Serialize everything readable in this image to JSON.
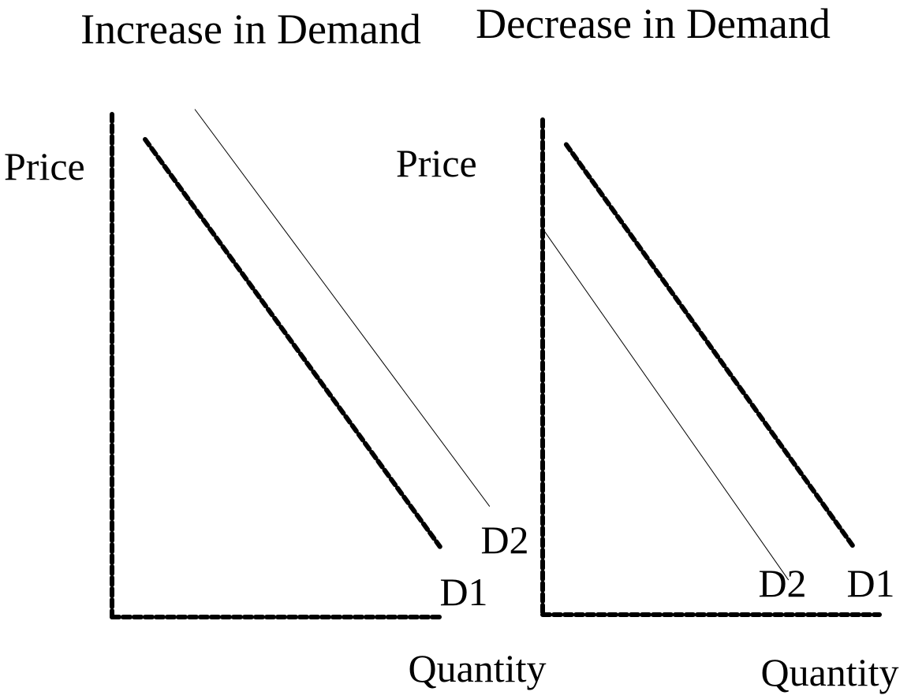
{
  "chart_data": [
    {
      "type": "line",
      "title": "Increase in Demand",
      "xlabel": "Quantity",
      "ylabel": "Price",
      "xlim": [
        0,
        10
      ],
      "ylim": [
        0,
        10
      ],
      "grid": false,
      "series": [
        {
          "name": "D1",
          "style": "dashed-thick",
          "x": [
            1.0,
            9.9
          ],
          "y": [
            9.5,
            1.4
          ]
        },
        {
          "name": "D2",
          "style": "thin",
          "x": [
            2.5,
            11.4
          ],
          "y": [
            10.1,
            2.2
          ]
        }
      ]
    },
    {
      "type": "line",
      "title": "Decrease in Demand",
      "xlabel": "Quantity",
      "ylabel": "Price",
      "xlim": [
        0,
        10
      ],
      "ylim": [
        0,
        10
      ],
      "grid": false,
      "series": [
        {
          "name": "D1",
          "style": "dashed-thick",
          "x": [
            0.7,
            9.2
          ],
          "y": [
            9.5,
            1.4
          ]
        },
        {
          "name": "D2",
          "style": "thin",
          "x": [
            0.0,
            7.3
          ],
          "y": [
            7.8,
            0.7
          ]
        }
      ]
    }
  ]
}
